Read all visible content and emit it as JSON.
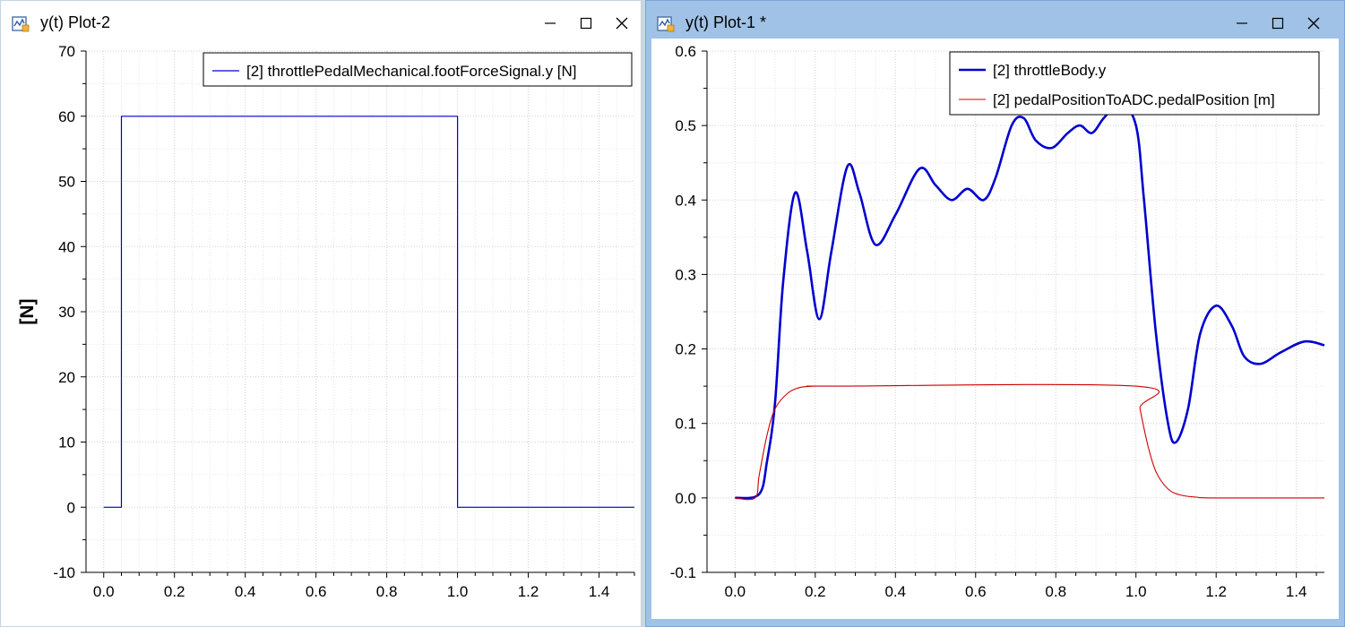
{
  "windows": {
    "left": {
      "title": "y(t) Plot-2",
      "icon": "plot-icon",
      "buttons": {
        "minimize": "minimize-icon",
        "maximize": "maximize-icon",
        "close": "close-icon"
      }
    },
    "right": {
      "title": "y(t) Plot-1 *",
      "icon": "plot-icon",
      "buttons": {
        "minimize": "minimize-icon",
        "maximize": "maximize-icon",
        "close": "close-icon"
      }
    }
  },
  "chart_data": [
    {
      "type": "line",
      "ylabel": "[N]",
      "xlabel": "",
      "xlim": [
        -0.05,
        1.5
      ],
      "ylim": [
        -10,
        70
      ],
      "xticks": [
        "0.0",
        "0.2",
        "0.4",
        "0.6",
        "0.8",
        "1.0",
        "1.2",
        "1.4"
      ],
      "yticks": [
        "-10",
        "0",
        "10",
        "20",
        "30",
        "40",
        "50",
        "60",
        "70"
      ],
      "legend_position": "top-right",
      "grid": true,
      "series": [
        {
          "name": "[2] throttlePedalMechanical.footForceSignal.y [N]",
          "color": "#0000d0",
          "x": [
            0.0,
            0.05,
            0.05,
            1.0,
            1.0,
            1.5
          ],
          "y": [
            0,
            0,
            60,
            60,
            0,
            0
          ]
        }
      ]
    },
    {
      "type": "line",
      "ylabel": "",
      "xlabel": "",
      "xlim": [
        -0.07,
        1.47
      ],
      "ylim": [
        -0.1,
        0.6
      ],
      "xticks": [
        "0.0",
        "0.2",
        "0.4",
        "0.6",
        "0.8",
        "1.0",
        "1.2",
        "1.4"
      ],
      "yticks": [
        "-0.1",
        "0.0",
        "0.1",
        "0.2",
        "0.3",
        "0.4",
        "0.5",
        "0.6"
      ],
      "legend_position": "top-right",
      "grid": true,
      "series": [
        {
          "name": "[2] throttleBody.y",
          "color": "#0000d0",
          "x": [
            0.0,
            0.06,
            0.08,
            0.1,
            0.12,
            0.15,
            0.18,
            0.21,
            0.24,
            0.28,
            0.31,
            0.35,
            0.4,
            0.46,
            0.5,
            0.54,
            0.58,
            0.62,
            0.65,
            0.69,
            0.72,
            0.75,
            0.79,
            0.83,
            0.86,
            0.89,
            0.92,
            0.96,
            1.0,
            1.02,
            1.05,
            1.08,
            1.1,
            1.13,
            1.16,
            1.2,
            1.24,
            1.27,
            1.31,
            1.36,
            1.42,
            1.47
          ],
          "y": [
            0.0,
            0.005,
            0.05,
            0.13,
            0.29,
            0.41,
            0.33,
            0.24,
            0.33,
            0.445,
            0.41,
            0.34,
            0.38,
            0.442,
            0.42,
            0.4,
            0.415,
            0.4,
            0.43,
            0.5,
            0.51,
            0.48,
            0.47,
            0.49,
            0.5,
            0.49,
            0.51,
            0.53,
            0.5,
            0.4,
            0.22,
            0.1,
            0.075,
            0.12,
            0.22,
            0.258,
            0.23,
            0.19,
            0.18,
            0.195,
            0.21,
            0.205
          ]
        },
        {
          "name": "[2] pedalPositionToADC.pedalPosition [m]",
          "color": "#d00000",
          "x": [
            0.0,
            0.05,
            0.06,
            0.08,
            0.1,
            0.13,
            0.16,
            0.2,
            0.25,
            1.0,
            1.01,
            1.03,
            1.05,
            1.08,
            1.11,
            1.15,
            1.2,
            1.47
          ],
          "y": [
            0.0,
            0.0,
            0.03,
            0.085,
            0.12,
            0.14,
            0.148,
            0.15,
            0.15,
            0.15,
            0.12,
            0.07,
            0.035,
            0.012,
            0.004,
            0.001,
            0.0,
            0.0
          ]
        }
      ]
    }
  ]
}
